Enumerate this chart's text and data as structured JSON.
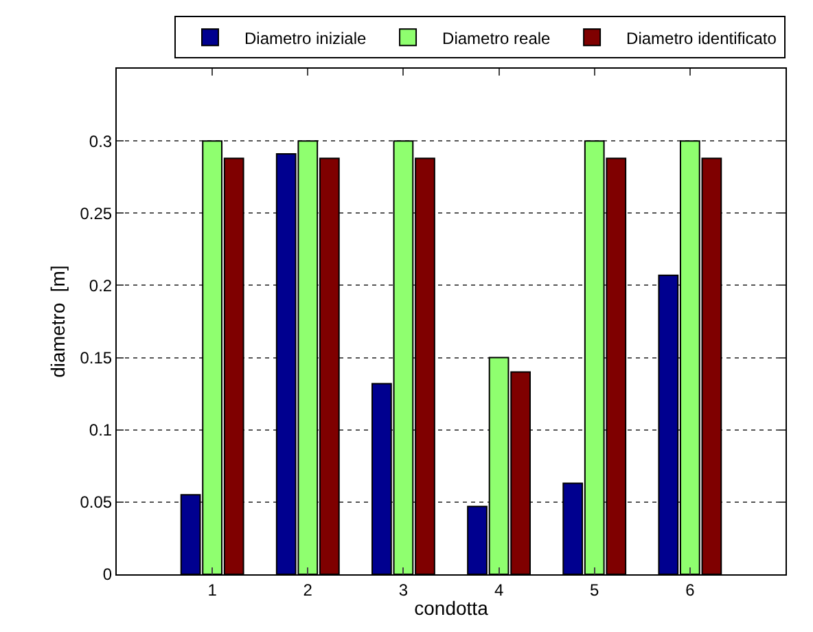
{
  "chart_data": {
    "type": "bar",
    "xlabel": "condotta",
    "ylabel": "diametro  [m]",
    "categories": [
      "1",
      "2",
      "3",
      "4",
      "5",
      "6"
    ],
    "series": [
      {
        "name": "Diametro iniziale",
        "color": "#00008f",
        "values": [
          0.055,
          0.291,
          0.132,
          0.047,
          0.063,
          0.207
        ]
      },
      {
        "name": "Diametro reale",
        "color": "#8fff6f",
        "values": [
          0.3,
          0.3,
          0.3,
          0.15,
          0.3,
          0.3
        ]
      },
      {
        "name": "Diametro identificato",
        "color": "#7f0000",
        "values": [
          0.288,
          0.288,
          0.288,
          0.14,
          0.288,
          0.288
        ]
      }
    ],
    "ylim": [
      0,
      0.35
    ],
    "yticks": [
      0,
      0.05,
      0.1,
      0.15,
      0.2,
      0.25,
      0.3
    ],
    "grid": "y",
    "legend": "top"
  }
}
